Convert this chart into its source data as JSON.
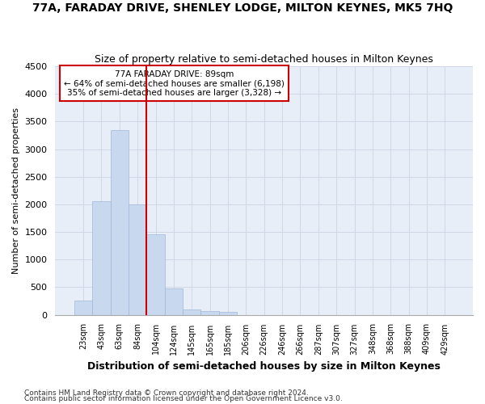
{
  "title": "77A, FARADAY DRIVE, SHENLEY LODGE, MILTON KEYNES, MK5 7HQ",
  "subtitle": "Size of property relative to semi-detached houses in Milton Keynes",
  "xlabel": "Distribution of semi-detached houses by size in Milton Keynes",
  "ylabel": "Number of semi-detached properties",
  "footnote1": "Contains HM Land Registry data © Crown copyright and database right 2024.",
  "footnote2": "Contains public sector information licensed under the Open Government Licence v3.0.",
  "bar_color": "#c8d8ee",
  "bar_edge_color": "#a0b8d8",
  "grid_color": "#d0d8e8",
  "bg_color": "#e8eef8",
  "annotation_box_color": "#cc0000",
  "vline_color": "#cc0000",
  "ylim": [
    0,
    4500
  ],
  "yticks": [
    0,
    500,
    1000,
    1500,
    2000,
    2500,
    3000,
    3500,
    4000,
    4500
  ],
  "categories": [
    "23sqm",
    "43sqm",
    "63sqm",
    "84sqm",
    "104sqm",
    "124sqm",
    "145sqm",
    "165sqm",
    "185sqm",
    "206sqm",
    "226sqm",
    "246sqm",
    "266sqm",
    "287sqm",
    "307sqm",
    "327sqm",
    "348sqm",
    "368sqm",
    "388sqm",
    "409sqm",
    "429sqm"
  ],
  "values": [
    255,
    2050,
    3350,
    2000,
    1450,
    480,
    100,
    60,
    50,
    0,
    0,
    0,
    0,
    0,
    0,
    0,
    0,
    0,
    0,
    0,
    0
  ],
  "annotation_text_line1": "77A FARADAY DRIVE: 89sqm",
  "annotation_text_line2": "← 64% of semi-detached houses are smaller (6,198)",
  "annotation_text_line3": "35% of semi-detached houses are larger (3,328) →",
  "vline_x_index": 3.5
}
